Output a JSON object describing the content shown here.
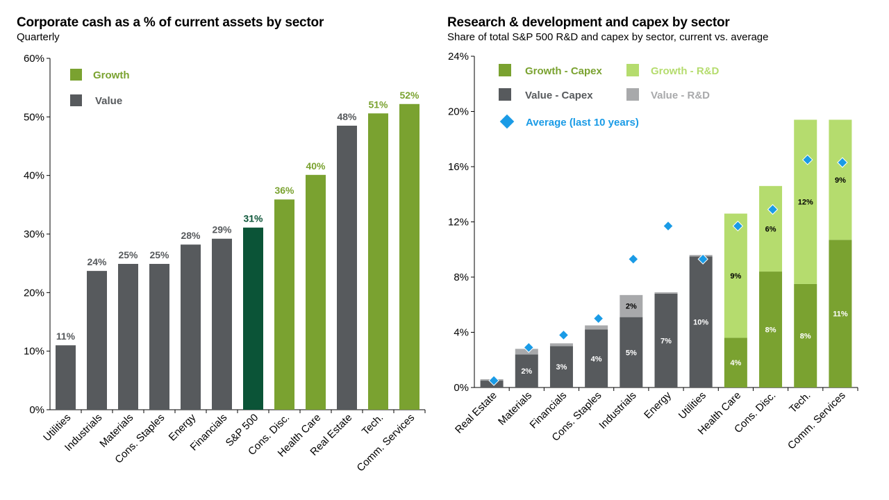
{
  "left": {
    "title": "Corporate cash as a % of current assets by sector",
    "subtitle": "Quarterly"
  },
  "right": {
    "title": "Research & development and capex by sector",
    "subtitle": "Share of total S&P 500 R&D and capex by sector, current vs. average"
  },
  "colors": {
    "growth": "#7aa230",
    "growth_light": "#b5dc6e",
    "value": "#575a5d",
    "value_light": "#a8a9ab",
    "sp500": "#0b5437",
    "average_marker": "#1a9be6",
    "value_label": "#575a5d",
    "growth_label": "#7aa230",
    "sp500_label": "#0b5437"
  },
  "chart_data": [
    {
      "type": "bar",
      "title": "Corporate cash as a % of current assets by sector",
      "subtitle": "Quarterly",
      "xlabel": "",
      "ylabel": "",
      "ylim": [
        0,
        60
      ],
      "yticks": [
        0,
        10,
        20,
        30,
        40,
        50,
        60
      ],
      "ytick_labels": [
        "0%",
        "10%",
        "20%",
        "30%",
        "40%",
        "50%",
        "60%"
      ],
      "grid": false,
      "legend": {
        "placement": "top-left",
        "entries": [
          {
            "label": "Growth",
            "group": "growth"
          },
          {
            "label": "Value",
            "group": "value"
          }
        ]
      },
      "categories": [
        "Utilities",
        "Industrials",
        "Materials",
        "Cons. Staples",
        "Energy",
        "Financials",
        "S&P 500",
        "Cons. Disc.",
        "Health Care",
        "Real Estate",
        "Tech.",
        "Comm. Services"
      ],
      "groups": [
        "value",
        "value",
        "value",
        "value",
        "value",
        "value",
        "sp500",
        "growth",
        "growth",
        "value",
        "growth",
        "growth"
      ],
      "values": [
        11,
        23.7,
        24.9,
        24.9,
        28.2,
        29.2,
        31.1,
        35.9,
        40.1,
        48.5,
        50.6,
        52.2
      ],
      "data_labels": [
        "11%",
        "24%",
        "25%",
        "25%",
        "28%",
        "29%",
        "31%",
        "36%",
        "40%",
        "48%",
        "51%",
        "52%"
      ]
    },
    {
      "type": "bar",
      "stacked": true,
      "title": "Research & development and capex by sector",
      "subtitle": "Share of total S&P 500 R&D and capex by sector, current vs. average",
      "xlabel": "",
      "ylabel": "",
      "ylim": [
        0,
        24
      ],
      "yticks": [
        0,
        4,
        8,
        12,
        16,
        20,
        24
      ],
      "ytick_labels": [
        "0%",
        "4%",
        "8%",
        "12%",
        "16%",
        "20%",
        "24%"
      ],
      "grid": false,
      "legend": {
        "placement": "top-left",
        "entries": [
          {
            "label": "Growth - Capex",
            "key": "growth_capex"
          },
          {
            "label": "Growth - R&D",
            "key": "growth_rd"
          },
          {
            "label": "Value - Capex",
            "key": "value_capex"
          },
          {
            "label": "Value - R&D",
            "key": "value_rd"
          },
          {
            "label": "Average (last 10 years)",
            "key": "average"
          }
        ]
      },
      "categories": [
        "Real Estate",
        "Materials",
        "Financials",
        "Cons. Staples",
        "Industrials",
        "Energy",
        "Utilities",
        "Health Care",
        "Cons. Disc.",
        "Tech.",
        "Comm. Services"
      ],
      "groups": [
        "value",
        "value",
        "value",
        "value",
        "value",
        "value",
        "value",
        "growth",
        "growth",
        "growth",
        "growth"
      ],
      "series": [
        {
          "name": "Capex",
          "values": [
            0.5,
            2.4,
            3.0,
            4.2,
            5.1,
            6.8,
            9.5,
            3.6,
            8.4,
            7.5,
            10.7
          ],
          "data_labels": [
            "",
            "2%",
            "3%",
            "4%",
            "5%",
            "7%",
            "10%",
            "4%",
            "8%",
            "8%",
            "11%"
          ]
        },
        {
          "name": "R&D",
          "values": [
            0.1,
            0.4,
            0.2,
            0.3,
            1.6,
            0.1,
            0.1,
            9.0,
            6.2,
            11.9,
            8.7
          ],
          "data_labels": [
            "",
            "",
            "",
            "",
            "2%",
            "",
            "",
            "9%",
            "6%",
            "12%",
            "9%"
          ]
        },
        {
          "name": "Average (last 10 years)",
          "type": "scatter",
          "marker": "diamond",
          "values": [
            0.5,
            2.9,
            3.8,
            5.0,
            9.3,
            11.7,
            9.3,
            11.7,
            12.9,
            16.5,
            16.3
          ]
        }
      ]
    }
  ]
}
